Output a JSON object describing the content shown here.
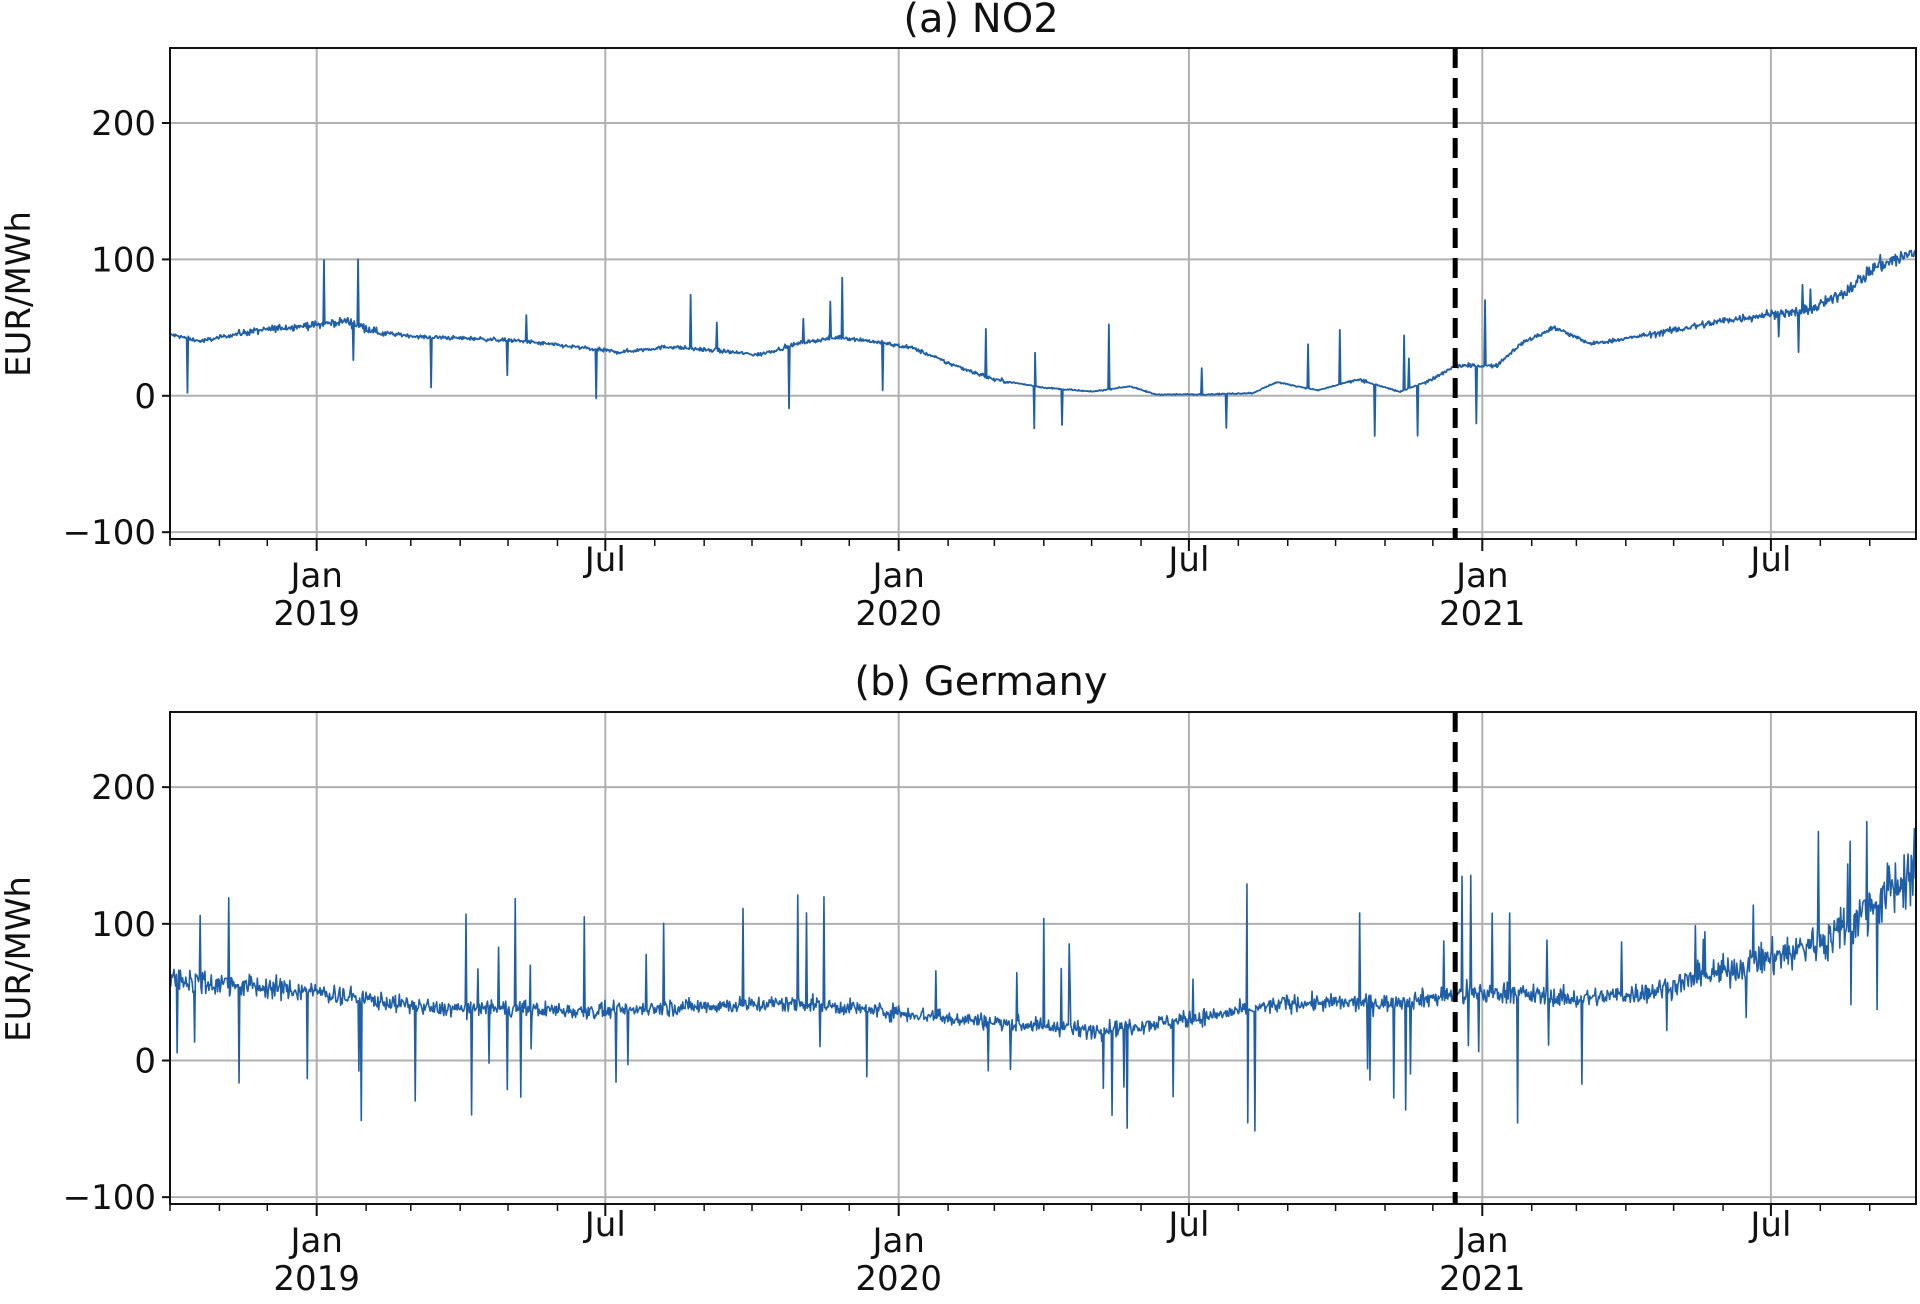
{
  "chart_data": [
    {
      "type": "line",
      "title": "(a) NO2",
      "ylabel": "EUR/MWh",
      "xlabel": "",
      "ylim": [
        -105,
        255
      ],
      "xlim": [
        "2018-10-01",
        "2021-09-30"
      ],
      "grid": true,
      "y_ticks": [
        {
          "value": -100,
          "label": "−100"
        },
        {
          "value": 0,
          "label": "0"
        },
        {
          "value": 100,
          "label": "100"
        },
        {
          "value": 200,
          "label": "200"
        }
      ],
      "x_ticks": [
        {
          "date": "2019-01-01",
          "label": "Jan",
          "sublabel": "2019"
        },
        {
          "date": "2019-07-01",
          "label": "Jul",
          "sublabel": ""
        },
        {
          "date": "2020-01-01",
          "label": "Jan",
          "sublabel": "2020"
        },
        {
          "date": "2020-07-01",
          "label": "Jul",
          "sublabel": ""
        },
        {
          "date": "2021-01-01",
          "label": "Jan",
          "sublabel": "2021"
        },
        {
          "date": "2021-07-01",
          "label": "Jul",
          "sublabel": ""
        }
      ],
      "vline_date": "2020-12-15",
      "series_color": "#1f5fa8",
      "series": [
        {
          "values_by_date": [
            [
              "2018-10-01",
              45
            ],
            [
              "2018-10-20",
              40
            ],
            [
              "2018-11-15",
              46
            ],
            [
              "2018-12-10",
              50
            ],
            [
              "2019-01-01",
              52
            ],
            [
              "2019-01-20",
              55
            ],
            [
              "2019-02-10",
              46
            ],
            [
              "2019-03-10",
              43
            ],
            [
              "2019-04-10",
              42
            ],
            [
              "2019-05-10",
              40
            ],
            [
              "2019-06-10",
              36
            ],
            [
              "2019-07-10",
              32
            ],
            [
              "2019-08-10",
              36
            ],
            [
              "2019-09-10",
              33
            ],
            [
              "2019-10-05",
              30
            ],
            [
              "2019-11-01",
              39
            ],
            [
              "2019-11-25",
              43
            ],
            [
              "2019-12-15",
              40
            ],
            [
              "2020-01-10",
              35
            ],
            [
              "2020-02-01",
              24
            ],
            [
              "2020-03-01",
              12
            ],
            [
              "2020-04-01",
              6
            ],
            [
              "2020-05-01",
              3
            ],
            [
              "2020-05-25",
              7
            ],
            [
              "2020-06-10",
              1
            ],
            [
              "2020-07-10",
              1
            ],
            [
              "2020-08-10",
              2
            ],
            [
              "2020-08-25",
              10
            ],
            [
              "2020-09-20",
              4
            ],
            [
              "2020-10-15",
              12
            ],
            [
              "2020-11-10",
              3
            ],
            [
              "2020-12-01",
              12
            ],
            [
              "2020-12-15",
              22
            ],
            [
              "2021-01-10",
              22
            ],
            [
              "2021-01-25",
              38
            ],
            [
              "2021-02-15",
              50
            ],
            [
              "2021-03-10",
              38
            ],
            [
              "2021-04-01",
              42
            ],
            [
              "2021-05-01",
              48
            ],
            [
              "2021-06-01",
              55
            ],
            [
              "2021-07-01",
              60
            ],
            [
              "2021-07-25",
              62
            ],
            [
              "2021-08-15",
              75
            ],
            [
              "2021-09-05",
              95
            ],
            [
              "2021-09-30",
              105
            ]
          ]
        }
      ]
    },
    {
      "type": "line",
      "title": "(b) Germany",
      "ylabel": "EUR/MWh",
      "xlabel": "",
      "ylim": [
        -105,
        255
      ],
      "xlim": [
        "2018-10-01",
        "2021-09-30"
      ],
      "grid": true,
      "y_ticks": [
        {
          "value": -100,
          "label": "−100"
        },
        {
          "value": 0,
          "label": "0"
        },
        {
          "value": 100,
          "label": "100"
        },
        {
          "value": 200,
          "label": "200"
        }
      ],
      "x_ticks": [
        {
          "date": "2019-01-01",
          "label": "Jan",
          "sublabel": "2019"
        },
        {
          "date": "2019-07-01",
          "label": "Jul",
          "sublabel": ""
        },
        {
          "date": "2020-01-01",
          "label": "Jan",
          "sublabel": "2020"
        },
        {
          "date": "2020-07-01",
          "label": "Jul",
          "sublabel": ""
        },
        {
          "date": "2021-01-01",
          "label": "Jan",
          "sublabel": "2021"
        },
        {
          "date": "2021-07-01",
          "label": "Jul",
          "sublabel": ""
        }
      ],
      "vline_date": "2020-12-15",
      "series_color": "#1f5fa8",
      "series": [
        {
          "values_by_date": [
            [
              "2018-10-01",
              60
            ],
            [
              "2018-11-15",
              55
            ],
            [
              "2019-01-01",
              50
            ],
            [
              "2019-02-01",
              45
            ],
            [
              "2019-03-15",
              38
            ],
            [
              "2019-05-01",
              38
            ],
            [
              "2019-07-01",
              36
            ],
            [
              "2019-09-01",
              40
            ],
            [
              "2019-11-01",
              42
            ],
            [
              "2020-01-01",
              35
            ],
            [
              "2020-03-01",
              28
            ],
            [
              "2020-05-01",
              22
            ],
            [
              "2020-07-01",
              30
            ],
            [
              "2020-09-01",
              42
            ],
            [
              "2020-11-01",
              42
            ],
            [
              "2020-12-15",
              48
            ],
            [
              "2021-01-15",
              50
            ],
            [
              "2021-03-01",
              45
            ],
            [
              "2021-04-15",
              50
            ],
            [
              "2021-06-01",
              65
            ],
            [
              "2021-07-15",
              80
            ],
            [
              "2021-08-15",
              95
            ],
            [
              "2021-09-30",
              140
            ]
          ]
        }
      ]
    }
  ]
}
